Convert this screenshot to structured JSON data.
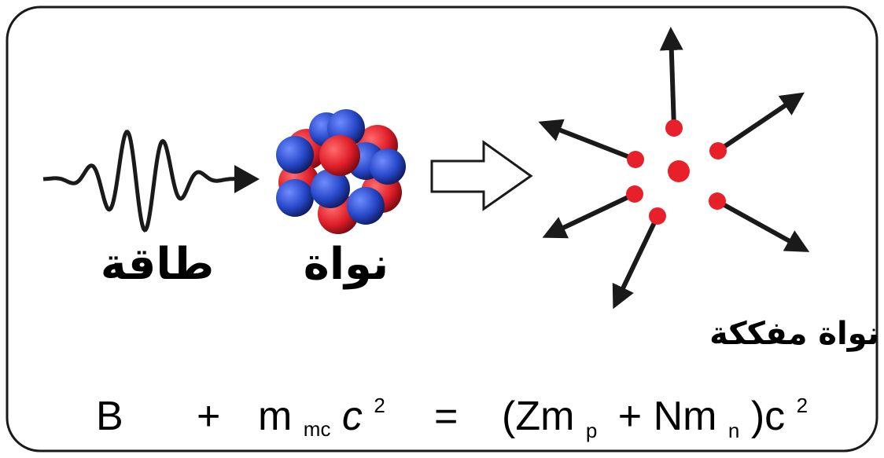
{
  "labels": {
    "energy": "طاقة",
    "nucleus": "نواة",
    "fragmented": "نواة مفككة"
  },
  "equation": {
    "b": "B",
    "plus": "+",
    "m": "m",
    "m_sub": "mc",
    "c": "c",
    "c_sup": "2",
    "equals": "=",
    "rhs_1": "(Zm",
    "rhs_1_sub": "p",
    "rhs_2": "+ Nm",
    "rhs_2_sub": "n",
    "rhs_3": ")c",
    "rhs_3_sup": "2"
  }
}
